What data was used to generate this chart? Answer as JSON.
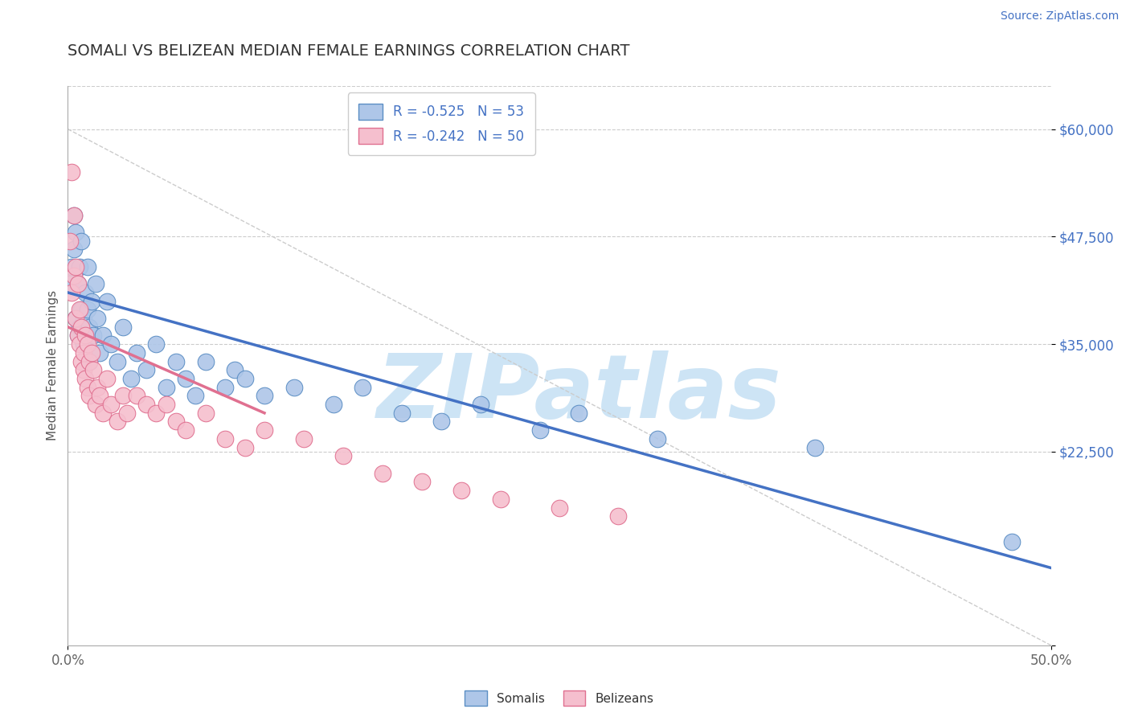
{
  "title": "SOMALI VS BELIZEAN MEDIAN FEMALE EARNINGS CORRELATION CHART",
  "source_text": "Source: ZipAtlas.com",
  "ylabel": "Median Female Earnings",
  "xlim": [
    0.0,
    0.5
  ],
  "ylim": [
    0,
    65000
  ],
  "yticks": [
    0,
    22500,
    35000,
    47500,
    60000
  ],
  "ytick_labels": [
    "",
    "$22,500",
    "$35,000",
    "$47,500",
    "$60,000"
  ],
  "xticks": [
    0.0,
    0.5
  ],
  "xtick_labels": [
    "0.0%",
    "50.0%"
  ],
  "title_color": "#333333",
  "title_fontsize": 14,
  "source_color": "#4472c4",
  "watermark_text": "ZIPatlas",
  "watermark_color": "#cde4f5",
  "watermark_fontsize": 80,
  "somali_color": "#aec6e8",
  "somali_edge_color": "#5b8ec4",
  "belizean_color": "#f5bfce",
  "belizean_edge_color": "#e07090",
  "somali_line_color": "#4472c4",
  "belizean_line_color": "#e07090",
  "ref_line_color": "#cccccc",
  "legend_label_somali": "Somalis",
  "legend_label_belizean": "Belizeans",
  "somali_x": [
    0.001,
    0.002,
    0.003,
    0.003,
    0.004,
    0.004,
    0.005,
    0.005,
    0.006,
    0.006,
    0.007,
    0.007,
    0.008,
    0.008,
    0.009,
    0.01,
    0.01,
    0.011,
    0.011,
    0.012,
    0.013,
    0.014,
    0.015,
    0.016,
    0.018,
    0.02,
    0.022,
    0.025,
    0.028,
    0.032,
    0.035,
    0.04,
    0.045,
    0.05,
    0.055,
    0.06,
    0.065,
    0.07,
    0.08,
    0.085,
    0.09,
    0.1,
    0.115,
    0.135,
    0.15,
    0.17,
    0.19,
    0.21,
    0.24,
    0.26,
    0.3,
    0.38,
    0.48
  ],
  "somali_y": [
    42000,
    44000,
    50000,
    46000,
    48000,
    38000,
    42000,
    36000,
    44000,
    37000,
    39000,
    47000,
    38000,
    35000,
    41000,
    39000,
    44000,
    37000,
    33000,
    40000,
    36000,
    42000,
    38000,
    34000,
    36000,
    40000,
    35000,
    33000,
    37000,
    31000,
    34000,
    32000,
    35000,
    30000,
    33000,
    31000,
    29000,
    33000,
    30000,
    32000,
    31000,
    29000,
    30000,
    28000,
    30000,
    27000,
    26000,
    28000,
    25000,
    27000,
    24000,
    23000,
    12000
  ],
  "belizean_x": [
    0.001,
    0.002,
    0.002,
    0.003,
    0.003,
    0.004,
    0.004,
    0.005,
    0.005,
    0.006,
    0.006,
    0.007,
    0.007,
    0.008,
    0.008,
    0.009,
    0.009,
    0.01,
    0.01,
    0.011,
    0.011,
    0.012,
    0.013,
    0.014,
    0.015,
    0.016,
    0.018,
    0.02,
    0.022,
    0.025,
    0.028,
    0.03,
    0.035,
    0.04,
    0.045,
    0.05,
    0.055,
    0.06,
    0.07,
    0.08,
    0.09,
    0.1,
    0.12,
    0.14,
    0.16,
    0.18,
    0.2,
    0.22,
    0.25,
    0.28
  ],
  "belizean_y": [
    47000,
    55000,
    41000,
    43000,
    50000,
    38000,
    44000,
    36000,
    42000,
    35000,
    39000,
    33000,
    37000,
    34000,
    32000,
    36000,
    31000,
    35000,
    30000,
    33000,
    29000,
    34000,
    32000,
    28000,
    30000,
    29000,
    27000,
    31000,
    28000,
    26000,
    29000,
    27000,
    29000,
    28000,
    27000,
    28000,
    26000,
    25000,
    27000,
    24000,
    23000,
    25000,
    24000,
    22000,
    20000,
    19000,
    18000,
    17000,
    16000,
    15000
  ],
  "somali_trendline_x": [
    0.0,
    0.5
  ],
  "somali_trendline_y": [
    41000,
    9000
  ],
  "belizean_trendline_x": [
    0.0,
    0.1
  ],
  "belizean_trendline_y": [
    37000,
    27000
  ],
  "ref_line_x": [
    0.0,
    0.5
  ],
  "ref_line_y": [
    60000,
    0
  ]
}
